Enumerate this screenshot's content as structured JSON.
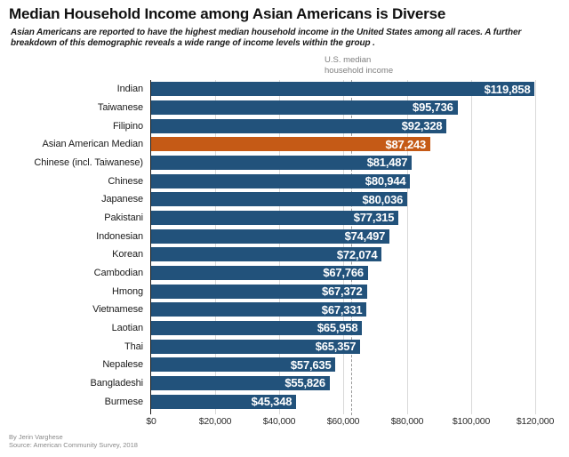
{
  "title": "Median Household Income among Asian Americans is Diverse",
  "subtitle": "Asian Americans are reported to have the highest median household income in the United States among all races. A further breakdown of this demographic reveals a wide range of income levels within the group .",
  "annotation": {
    "line1": "U.S. median",
    "line2": "household income"
  },
  "footer": {
    "byline": "By Jerin Varghese",
    "source": "Source: American Community Survey, 2018"
  },
  "colors": {
    "bar": "#22527B",
    "highlight": "#C55A16",
    "gridline": "#D9D9D9",
    "reference_line": "#9A9A9A",
    "value_text": "#FFFFFF",
    "axis_text": "#2B2B2B",
    "annotation_text": "#7F7F7F"
  },
  "chart_data": {
    "type": "bar",
    "orientation": "horizontal",
    "title": "Median Household Income among Asian Americans is Diverse",
    "xlabel": "",
    "ylabel": "",
    "xlim": [
      0,
      120000
    ],
    "grid": true,
    "categories": [
      "Indian",
      "Taiwanese",
      "Filipino",
      "Asian American Median",
      "Chinese (incl. Taiwanese)",
      "Chinese",
      "Japanese",
      "Pakistani",
      "Indonesian",
      "Korean",
      "Cambodian",
      "Hmong",
      "Vietnamese",
      "Laotian",
      "Thai",
      "Nepalese",
      "Bangladeshi",
      "Burmese"
    ],
    "values": [
      119858,
      95736,
      92328,
      87243,
      81487,
      80944,
      80036,
      77315,
      74497,
      72074,
      67766,
      67372,
      67331,
      65958,
      65357,
      57635,
      55826,
      45348
    ],
    "value_labels": [
      "$119,858",
      "$95,736",
      "$92,328",
      "$87,243",
      "$81,487",
      "$80,944",
      "$80,036",
      "$77,315",
      "$74,497",
      "$72,074",
      "$67,766",
      "$67,372",
      "$67,331",
      "$65,958",
      "$65,357",
      "$57,635",
      "$55,826",
      "$45,348"
    ],
    "highlight_category": "Asian American Median",
    "x_ticks": [
      "$0",
      "$20,000",
      "$40,000",
      "$60,000",
      "$80,000",
      "$100,000",
      "$120,000"
    ],
    "x_tick_values": [
      0,
      20000,
      40000,
      60000,
      80000,
      100000,
      120000
    ],
    "reference_line": {
      "label": "U.S. median household income",
      "value": 62500
    }
  }
}
